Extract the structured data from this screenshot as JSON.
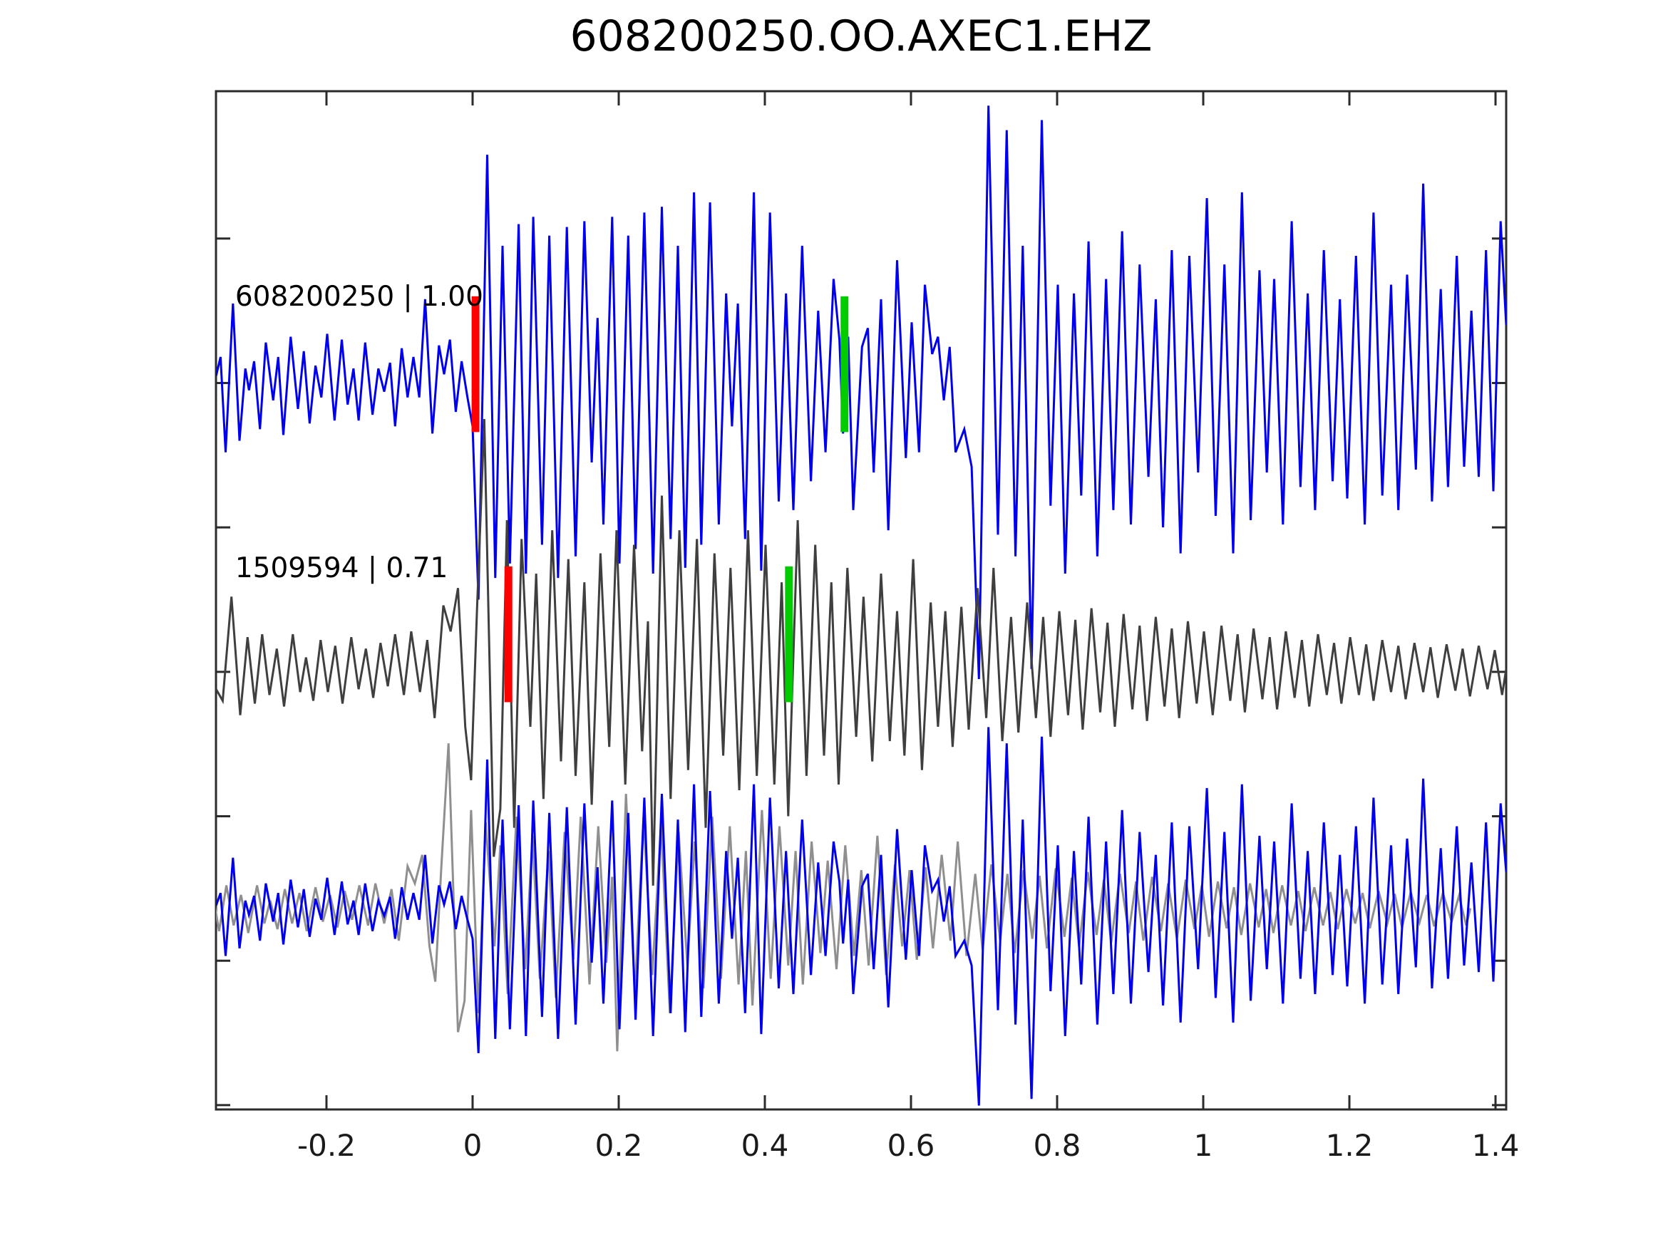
{
  "title": "608200250.OO.AXEC1.EHZ",
  "colors": {
    "trace1": "#0000ee",
    "trace2_dark": "#3f3f3f",
    "overlay_gray": "#8f8f8f",
    "pick_red": "#ff0000",
    "pick_green": "#00cc00",
    "axis": "#2b2b2b",
    "tick_label": "#1a1a1a"
  },
  "chart_data": {
    "type": "line",
    "title": "608200250.OO.AXEC1.EHZ",
    "xlim": [
      -0.3512,
      1.4146
    ],
    "ylim": [
      -5.03,
      2.02
    ],
    "xticks": [
      -0.2,
      0,
      0.2,
      0.4,
      0.6,
      0.8,
      1,
      1.2,
      1.4
    ],
    "xtick_labels": [
      "-0.2",
      "0",
      "0.2",
      "0.4",
      "0.6",
      "0.8",
      "1",
      "1.2",
      "1.4"
    ],
    "yticks": [
      1,
      0,
      -1,
      -2,
      -3,
      -4,
      -5
    ],
    "ytick_labels": [],
    "grid": false,
    "legend": "none",
    "traces": [
      {
        "id": "608200250",
        "score": 1.0,
        "score_label": "608200250 | 1.00",
        "offset": 0,
        "color_key": "trace1",
        "label_pos": {
          "x": -0.325,
          "y": 0.58
        },
        "picks": [
          {
            "kind": "red",
            "x": 0.004,
            "y0": -0.34,
            "y1": 0.6
          },
          {
            "kind": "green",
            "x": 0.509,
            "y0": -0.34,
            "y1": 0.6
          }
        ],
        "waveform_xy": [
          -0.351,
          0.05,
          -0.345,
          0.18,
          -0.338,
          -0.48,
          -0.328,
          0.55,
          -0.319,
          -0.4,
          -0.311,
          0.1,
          -0.306,
          -0.05,
          -0.299,
          0.15,
          -0.291,
          -0.32,
          -0.283,
          0.28,
          -0.273,
          -0.12,
          -0.266,
          0.18,
          -0.259,
          -0.36,
          -0.249,
          0.32,
          -0.239,
          -0.18,
          -0.231,
          0.22,
          -0.223,
          -0.28,
          -0.215,
          0.12,
          -0.207,
          -0.1,
          -0.199,
          0.34,
          -0.189,
          -0.26,
          -0.179,
          0.3,
          -0.171,
          -0.15,
          -0.163,
          0.1,
          -0.156,
          -0.26,
          -0.147,
          0.28,
          -0.137,
          -0.22,
          -0.129,
          0.1,
          -0.121,
          -0.06,
          -0.113,
          0.14,
          -0.106,
          -0.3,
          -0.097,
          0.24,
          -0.089,
          -0.1,
          -0.081,
          0.18,
          -0.073,
          -0.1,
          -0.065,
          0.58,
          -0.055,
          -0.35,
          -0.046,
          0.26,
          -0.039,
          0.06,
          -0.031,
          0.3,
          -0.023,
          -0.2,
          -0.015,
          0.15,
          -0.007,
          -0.1,
          0.0,
          -0.3,
          0.008,
          -1.5,
          0.02,
          1.58,
          0.031,
          -1.35,
          0.041,
          0.95,
          0.051,
          -1.25,
          0.063,
          1.1,
          0.073,
          -1.32,
          0.083,
          1.15,
          0.095,
          -1.12,
          0.105,
          1.02,
          0.117,
          -1.35,
          0.129,
          1.08,
          0.141,
          -1.2,
          0.153,
          1.12,
          0.163,
          -0.55,
          0.171,
          0.45,
          0.179,
          -0.98,
          0.191,
          1.15,
          0.201,
          -1.25,
          0.213,
          1.02,
          0.223,
          -1.15,
          0.235,
          1.18,
          0.247,
          -1.32,
          0.259,
          1.22,
          0.271,
          -1.08,
          0.281,
          0.95,
          0.291,
          -1.28,
          0.303,
          1.32,
          0.313,
          -1.12,
          0.325,
          1.25,
          0.337,
          -0.98,
          0.347,
          0.62,
          0.355,
          -0.3,
          0.363,
          0.55,
          0.373,
          -1.08,
          0.385,
          1.32,
          0.395,
          -1.3,
          0.407,
          1.18,
          0.419,
          -0.82,
          0.429,
          0.62,
          0.439,
          -0.88,
          0.451,
          0.95,
          0.463,
          -0.68,
          0.473,
          0.5,
          0.483,
          -0.48,
          0.494,
          0.72,
          0.502,
          0.3,
          0.507,
          -0.35,
          0.514,
          0.32,
          0.521,
          -0.88,
          0.533,
          0.25,
          0.541,
          0.38,
          0.549,
          -0.62,
          0.559,
          0.58,
          0.569,
          -1.02,
          0.581,
          0.85,
          0.593,
          -0.52,
          0.601,
          0.42,
          0.611,
          -0.48,
          0.619,
          0.68,
          0.629,
          0.2,
          0.637,
          0.32,
          0.645,
          -0.12,
          0.653,
          0.25,
          0.661,
          -0.48,
          0.673,
          -0.32,
          0.683,
          -0.58,
          0.693,
          -2.05,
          0.706,
          1.92,
          0.719,
          -1.05,
          0.731,
          1.75,
          0.743,
          -1.2,
          0.753,
          0.95,
          0.765,
          -1.98,
          0.779,
          1.82,
          0.791,
          -0.85,
          0.801,
          0.68,
          0.811,
          -1.32,
          0.823,
          0.62,
          0.833,
          -0.78,
          0.843,
          0.98,
          0.855,
          -1.2,
          0.867,
          0.72,
          0.877,
          -0.88,
          0.889,
          1.05,
          0.901,
          -0.98,
          0.913,
          0.82,
          0.925,
          -0.65,
          0.935,
          0.58,
          0.945,
          -1.0,
          0.957,
          0.92,
          0.969,
          -1.18,
          0.981,
          0.88,
          0.993,
          -0.62,
          1.005,
          1.28,
          1.017,
          -0.92,
          1.029,
          0.82,
          1.041,
          -1.18,
          1.053,
          1.32,
          1.065,
          -0.95,
          1.077,
          0.78,
          1.087,
          -0.62,
          1.097,
          0.72,
          1.109,
          -0.98,
          1.121,
          1.12,
          1.133,
          -0.72,
          1.143,
          0.62,
          1.153,
          -0.88,
          1.165,
          0.92,
          1.177,
          -0.68,
          1.187,
          0.58,
          1.197,
          -0.8,
          1.209,
          0.88,
          1.221,
          -0.98,
          1.233,
          1.18,
          1.245,
          -0.78,
          1.257,
          0.68,
          1.267,
          -0.88,
          1.279,
          0.75,
          1.291,
          -0.6,
          1.301,
          1.38,
          1.313,
          -0.82,
          1.325,
          0.65,
          1.335,
          -0.72,
          1.347,
          0.88,
          1.357,
          -0.58,
          1.367,
          0.5,
          1.377,
          -0.65,
          1.387,
          0.92,
          1.397,
          -0.75,
          1.407,
          1.12,
          1.4146,
          0.4
        ]
      },
      {
        "id": "1509594",
        "score": 0.71,
        "score_label": "1509594 | 0.71",
        "offset": -2,
        "color_key": "trace2_dark",
        "label_pos": {
          "x": -0.325,
          "y": 0.7
        },
        "picks": [
          {
            "kind": "red",
            "x": 0.049,
            "y0": -0.21,
            "y1": 0.73
          },
          {
            "kind": "green",
            "x": 0.433,
            "y0": -0.21,
            "y1": 0.73
          }
        ],
        "waveform_xy": [
          -0.351,
          -0.12,
          -0.342,
          -0.2,
          -0.33,
          0.52,
          -0.318,
          -0.3,
          -0.308,
          0.24,
          -0.298,
          -0.22,
          -0.288,
          0.26,
          -0.278,
          -0.16,
          -0.268,
          0.16,
          -0.258,
          -0.24,
          -0.246,
          0.26,
          -0.236,
          -0.14,
          -0.228,
          0.1,
          -0.218,
          -0.2,
          -0.208,
          0.22,
          -0.198,
          -0.14,
          -0.188,
          0.18,
          -0.178,
          -0.22,
          -0.166,
          0.24,
          -0.156,
          -0.12,
          -0.146,
          0.16,
          -0.136,
          -0.18,
          -0.126,
          0.2,
          -0.116,
          -0.1,
          -0.106,
          0.26,
          -0.094,
          -0.16,
          -0.084,
          0.28,
          -0.072,
          -0.14,
          -0.062,
          0.22,
          -0.052,
          -0.32,
          -0.04,
          0.46,
          -0.03,
          0.28,
          -0.02,
          0.58,
          -0.01,
          -0.38,
          -0.002,
          -0.75,
          0.006,
          0.42,
          0.016,
          1.75,
          0.029,
          -1.28,
          0.038,
          -0.95,
          0.047,
          1.05,
          0.057,
          -1.08,
          0.067,
          0.92,
          0.079,
          -0.38,
          0.087,
          0.68,
          0.097,
          -0.88,
          0.109,
          0.98,
          0.121,
          -0.62,
          0.131,
          0.78,
          0.141,
          -0.72,
          0.153,
          0.62,
          0.163,
          -0.92,
          0.175,
          0.82,
          0.187,
          -0.52,
          0.197,
          0.98,
          0.209,
          -0.78,
          0.221,
          0.88,
          0.232,
          -0.55,
          0.24,
          0.35,
          0.247,
          -1.48,
          0.259,
          1.22,
          0.271,
          -0.88,
          0.283,
          0.98,
          0.295,
          -0.68,
          0.307,
          0.92,
          0.319,
          -1.08,
          0.331,
          0.82,
          0.343,
          -0.58,
          0.353,
          0.72,
          0.365,
          -0.82,
          0.377,
          0.98,
          0.389,
          -0.72,
          0.401,
          0.88,
          0.413,
          -0.78,
          0.423,
          0.62,
          0.432,
          -1.0,
          0.445,
          1.05,
          0.457,
          -0.72,
          0.469,
          0.88,
          0.481,
          -0.58,
          0.491,
          0.62,
          0.501,
          -0.78,
          0.513,
          0.72,
          0.525,
          -0.45,
          0.535,
          0.52,
          0.547,
          -0.62,
          0.559,
          0.68,
          0.571,
          -0.48,
          0.581,
          0.42,
          0.591,
          -0.58,
          0.603,
          0.78,
          0.615,
          -0.68,
          0.627,
          0.48,
          0.637,
          -0.38,
          0.647,
          0.42,
          0.657,
          -0.52,
          0.669,
          0.45,
          0.679,
          -0.4,
          0.691,
          0.58,
          0.703,
          -0.32,
          0.713,
          0.72,
          0.725,
          -0.48,
          0.737,
          0.38,
          0.747,
          -0.42,
          0.759,
          0.48,
          0.771,
          -0.32,
          0.781,
          0.38,
          0.791,
          -0.45,
          0.803,
          0.42,
          0.815,
          -0.3,
          0.825,
          0.36,
          0.835,
          -0.4,
          0.847,
          0.44,
          0.859,
          -0.28,
          0.869,
          0.34,
          0.879,
          -0.38,
          0.891,
          0.4,
          0.903,
          -0.26,
          0.913,
          0.32,
          0.923,
          -0.34,
          0.935,
          0.38,
          0.947,
          -0.24,
          0.957,
          0.3,
          0.967,
          -0.32,
          0.979,
          0.35,
          0.991,
          -0.22,
          1.001,
          0.28,
          1.013,
          -0.3,
          1.025,
          0.32,
          1.037,
          -0.2,
          1.047,
          0.26,
          1.057,
          -0.28,
          1.069,
          0.3,
          1.081,
          -0.19,
          1.091,
          0.24,
          1.101,
          -0.26,
          1.113,
          0.28,
          1.125,
          -0.18,
          1.135,
          0.22,
          1.145,
          -0.24,
          1.157,
          0.26,
          1.169,
          -0.16,
          1.179,
          0.2,
          1.189,
          -0.22,
          1.201,
          0.24,
          1.213,
          -0.16,
          1.223,
          0.19,
          1.233,
          -0.2,
          1.245,
          0.22,
          1.257,
          -0.14,
          1.267,
          0.18,
          1.277,
          -0.19,
          1.289,
          0.2,
          1.301,
          -0.14,
          1.311,
          0.17,
          1.321,
          -0.18,
          1.333,
          0.19,
          1.345,
          -0.13,
          1.355,
          0.16,
          1.365,
          -0.17,
          1.377,
          0.18,
          1.389,
          -0.12,
          1.399,
          0.15,
          1.409,
          -0.16,
          1.4146,
          0.02
        ]
      }
    ],
    "overlay": {
      "offset": -3.65,
      "amplitude_scale": 0.66,
      "trace1_color_key": "trace1",
      "trace2_color_key": "overlay_gray",
      "trace2_x_shift": -0.049
    }
  }
}
